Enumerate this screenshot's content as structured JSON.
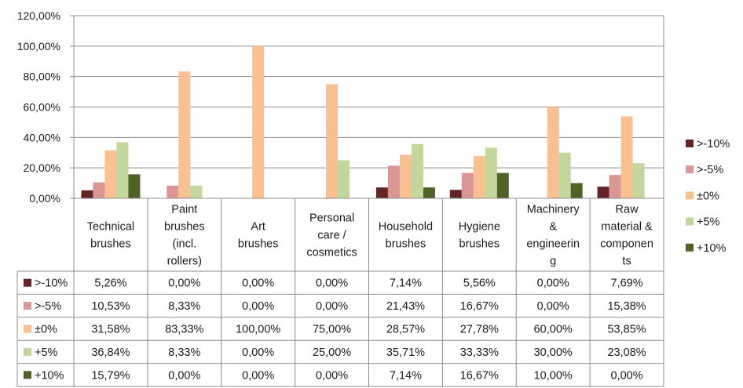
{
  "chart_data": {
    "type": "bar",
    "ylim": [
      0,
      120
    ],
    "ytick_labels": [
      "0,00%",
      "20,00%",
      "40,00%",
      "60,00%",
      "80,00%",
      "100,00%",
      "120,00%"
    ],
    "categories": [
      [
        "Technical",
        "brushes"
      ],
      [
        "Paint",
        "brushes",
        "(incl.",
        "rollers)"
      ],
      [
        "Art",
        "brushes"
      ],
      [
        "Personal",
        "care /",
        "cosmetics"
      ],
      [
        "Household",
        "brushes"
      ],
      [
        "Hygiene",
        "brushes"
      ],
      [
        "Machinery",
        "&",
        "engineerin",
        "g"
      ],
      [
        "Raw",
        "material &",
        "componen",
        "ts"
      ]
    ],
    "series": [
      {
        "name": ">-10%",
        "color": "#632523",
        "values": [
          5.26,
          0,
          0,
          0,
          7.14,
          5.56,
          0,
          7.69
        ],
        "labels": [
          "5,26%",
          "0,00%",
          "0,00%",
          "0,00%",
          "7,14%",
          "5,56%",
          "0,00%",
          "7,69%"
        ]
      },
      {
        "name": ">-5%",
        "color": "#d99694",
        "values": [
          10.53,
          8.33,
          0,
          0,
          21.43,
          16.67,
          0,
          15.38
        ],
        "labels": [
          "10,53%",
          "8,33%",
          "0,00%",
          "0,00%",
          "21,43%",
          "16,67%",
          "0,00%",
          "15,38%"
        ]
      },
      {
        "name": "±0%",
        "color": "#fac090",
        "values": [
          31.58,
          83.33,
          100,
          75,
          28.57,
          27.78,
          60,
          53.85
        ],
        "labels": [
          "31,58%",
          "83,33%",
          "100,00%",
          "75,00%",
          "28,57%",
          "27,78%",
          "60,00%",
          "53,85%"
        ]
      },
      {
        "name": "+5%",
        "color": "#c3d69b",
        "values": [
          36.84,
          8.33,
          0,
          25,
          35.71,
          33.33,
          30,
          23.08
        ],
        "labels": [
          "36,84%",
          "8,33%",
          "0,00%",
          "25,00%",
          "35,71%",
          "33,33%",
          "30,00%",
          "23,08%"
        ]
      },
      {
        "name": "+10%",
        "color": "#4f6228",
        "values": [
          15.79,
          0,
          0,
          0,
          7.14,
          16.67,
          10,
          0
        ],
        "labels": [
          "15,79%",
          "0,00%",
          "0,00%",
          "0,00%",
          "7,14%",
          "16,67%",
          "10,00%",
          "0,00%"
        ]
      }
    ],
    "grid": true,
    "legend": "right",
    "data_table": true
  }
}
